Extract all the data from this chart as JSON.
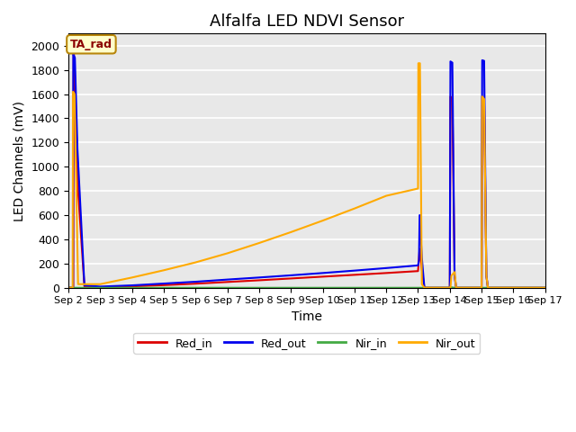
{
  "title": "Alfalfa LED NDVI Sensor",
  "xlabel": "Time",
  "ylabel": "LED Channels (mV)",
  "ylim": [
    0,
    2100
  ],
  "xlim": [
    2,
    17
  ],
  "background_color": "#e8e8e8",
  "annotation_text": "TA_rad",
  "annotation_color": "#8b0000",
  "annotation_bg": "#ffffcc",
  "annotation_border": "#b8860b",
  "series": {
    "Red_in": {
      "color": "#dd0000",
      "points": [
        [
          2,
          0
        ],
        [
          2.15,
          0
        ],
        [
          2.16,
          2000
        ],
        [
          2.22,
          1550
        ],
        [
          2.3,
          800
        ],
        [
          2.5,
          10
        ],
        [
          3,
          5
        ],
        [
          4,
          12
        ],
        [
          5,
          22
        ],
        [
          6,
          34
        ],
        [
          7,
          48
        ],
        [
          8,
          62
        ],
        [
          9,
          77
        ],
        [
          10,
          92
        ],
        [
          11,
          107
        ],
        [
          12,
          122
        ],
        [
          13,
          138
        ],
        [
          13.05,
          320
        ],
        [
          13.12,
          150
        ],
        [
          13.2,
          0
        ],
        [
          13.3,
          0
        ],
        [
          14.0,
          0
        ],
        [
          14.02,
          1580
        ],
        [
          14.08,
          1560
        ],
        [
          14.15,
          100
        ],
        [
          14.2,
          0
        ],
        [
          15.0,
          0
        ],
        [
          15.02,
          1580
        ],
        [
          15.08,
          1560
        ],
        [
          15.15,
          100
        ],
        [
          15.2,
          0
        ],
        [
          16,
          0
        ],
        [
          17,
          0
        ]
      ]
    },
    "Red_out": {
      "color": "#0000ee",
      "points": [
        [
          2,
          0
        ],
        [
          2.14,
          0
        ],
        [
          2.15,
          1930
        ],
        [
          2.2,
          1900
        ],
        [
          2.28,
          1150
        ],
        [
          2.5,
          20
        ],
        [
          3,
          10
        ],
        [
          4,
          20
        ],
        [
          5,
          35
        ],
        [
          6,
          50
        ],
        [
          7,
          68
        ],
        [
          8,
          85
        ],
        [
          9,
          103
        ],
        [
          10,
          122
        ],
        [
          11,
          142
        ],
        [
          12,
          163
        ],
        [
          13,
          185
        ],
        [
          13.03,
          230
        ],
        [
          13.05,
          600
        ],
        [
          13.12,
          250
        ],
        [
          13.2,
          0
        ],
        [
          13.3,
          0
        ],
        [
          14.0,
          0
        ],
        [
          14.02,
          1870
        ],
        [
          14.08,
          1860
        ],
        [
          14.15,
          100
        ],
        [
          14.2,
          0
        ],
        [
          15.0,
          0
        ],
        [
          15.02,
          1880
        ],
        [
          15.08,
          1875
        ],
        [
          15.15,
          100
        ],
        [
          15.2,
          0
        ],
        [
          16,
          0
        ],
        [
          17,
          0
        ]
      ]
    },
    "Nir_in": {
      "color": "#44aa44",
      "points": [
        [
          2,
          0
        ],
        [
          3,
          0
        ],
        [
          4,
          0
        ],
        [
          5,
          0
        ],
        [
          6,
          0
        ],
        [
          7,
          0
        ],
        [
          8,
          0
        ],
        [
          9,
          0
        ],
        [
          10,
          0
        ],
        [
          11,
          0
        ],
        [
          12,
          0
        ],
        [
          13,
          0
        ],
        [
          13.2,
          0
        ],
        [
          14.0,
          0
        ],
        [
          14.02,
          5
        ],
        [
          14.08,
          3
        ],
        [
          14.15,
          0
        ],
        [
          15.0,
          0
        ],
        [
          16,
          0
        ],
        [
          17,
          0
        ]
      ]
    },
    "Nir_out": {
      "color": "#ffaa00",
      "points": [
        [
          2,
          0
        ],
        [
          2.13,
          0
        ],
        [
          2.14,
          1620
        ],
        [
          2.19,
          1600
        ],
        [
          2.3,
          30
        ],
        [
          3,
          30
        ],
        [
          4,
          85
        ],
        [
          5,
          145
        ],
        [
          6,
          210
        ],
        [
          7,
          285
        ],
        [
          8,
          370
        ],
        [
          9,
          460
        ],
        [
          10,
          555
        ],
        [
          11,
          655
        ],
        [
          12,
          760
        ],
        [
          13,
          820
        ],
        [
          13.01,
          1855
        ],
        [
          13.06,
          1855
        ],
        [
          13.12,
          30
        ],
        [
          13.2,
          0
        ],
        [
          14.0,
          0
        ],
        [
          14.02,
          0
        ],
        [
          14.05,
          100
        ],
        [
          14.15,
          130
        ],
        [
          14.2,
          0
        ],
        [
          15.0,
          0
        ],
        [
          15.02,
          1580
        ],
        [
          15.08,
          1560
        ],
        [
          15.15,
          100
        ],
        [
          15.2,
          0
        ],
        [
          16,
          0
        ],
        [
          17,
          0
        ]
      ]
    }
  },
  "x_ticks": [
    2,
    3,
    4,
    5,
    6,
    7,
    8,
    9,
    10,
    11,
    12,
    13,
    14,
    15,
    16,
    17
  ],
  "x_tick_labels": [
    "Sep 2",
    "Sep 3",
    "Sep 4",
    "Sep 5",
    "Sep 6",
    "Sep 7",
    "Sep 8",
    "Sep 9",
    "Sep 10",
    "Sep 11",
    "Sep 12",
    "Sep 13",
    "Sep 14",
    "Sep 15",
    "Sep 16",
    "Sep 17"
  ],
  "y_ticks": [
    0,
    200,
    400,
    600,
    800,
    1000,
    1200,
    1400,
    1600,
    1800,
    2000
  ],
  "legend_labels": [
    "Red_in",
    "Red_out",
    "Nir_in",
    "Nir_out"
  ],
  "legend_colors": [
    "#dd0000",
    "#0000ee",
    "#44aa44",
    "#ffaa00"
  ],
  "legend_linestyles": [
    "-",
    "-",
    "-",
    "-"
  ]
}
